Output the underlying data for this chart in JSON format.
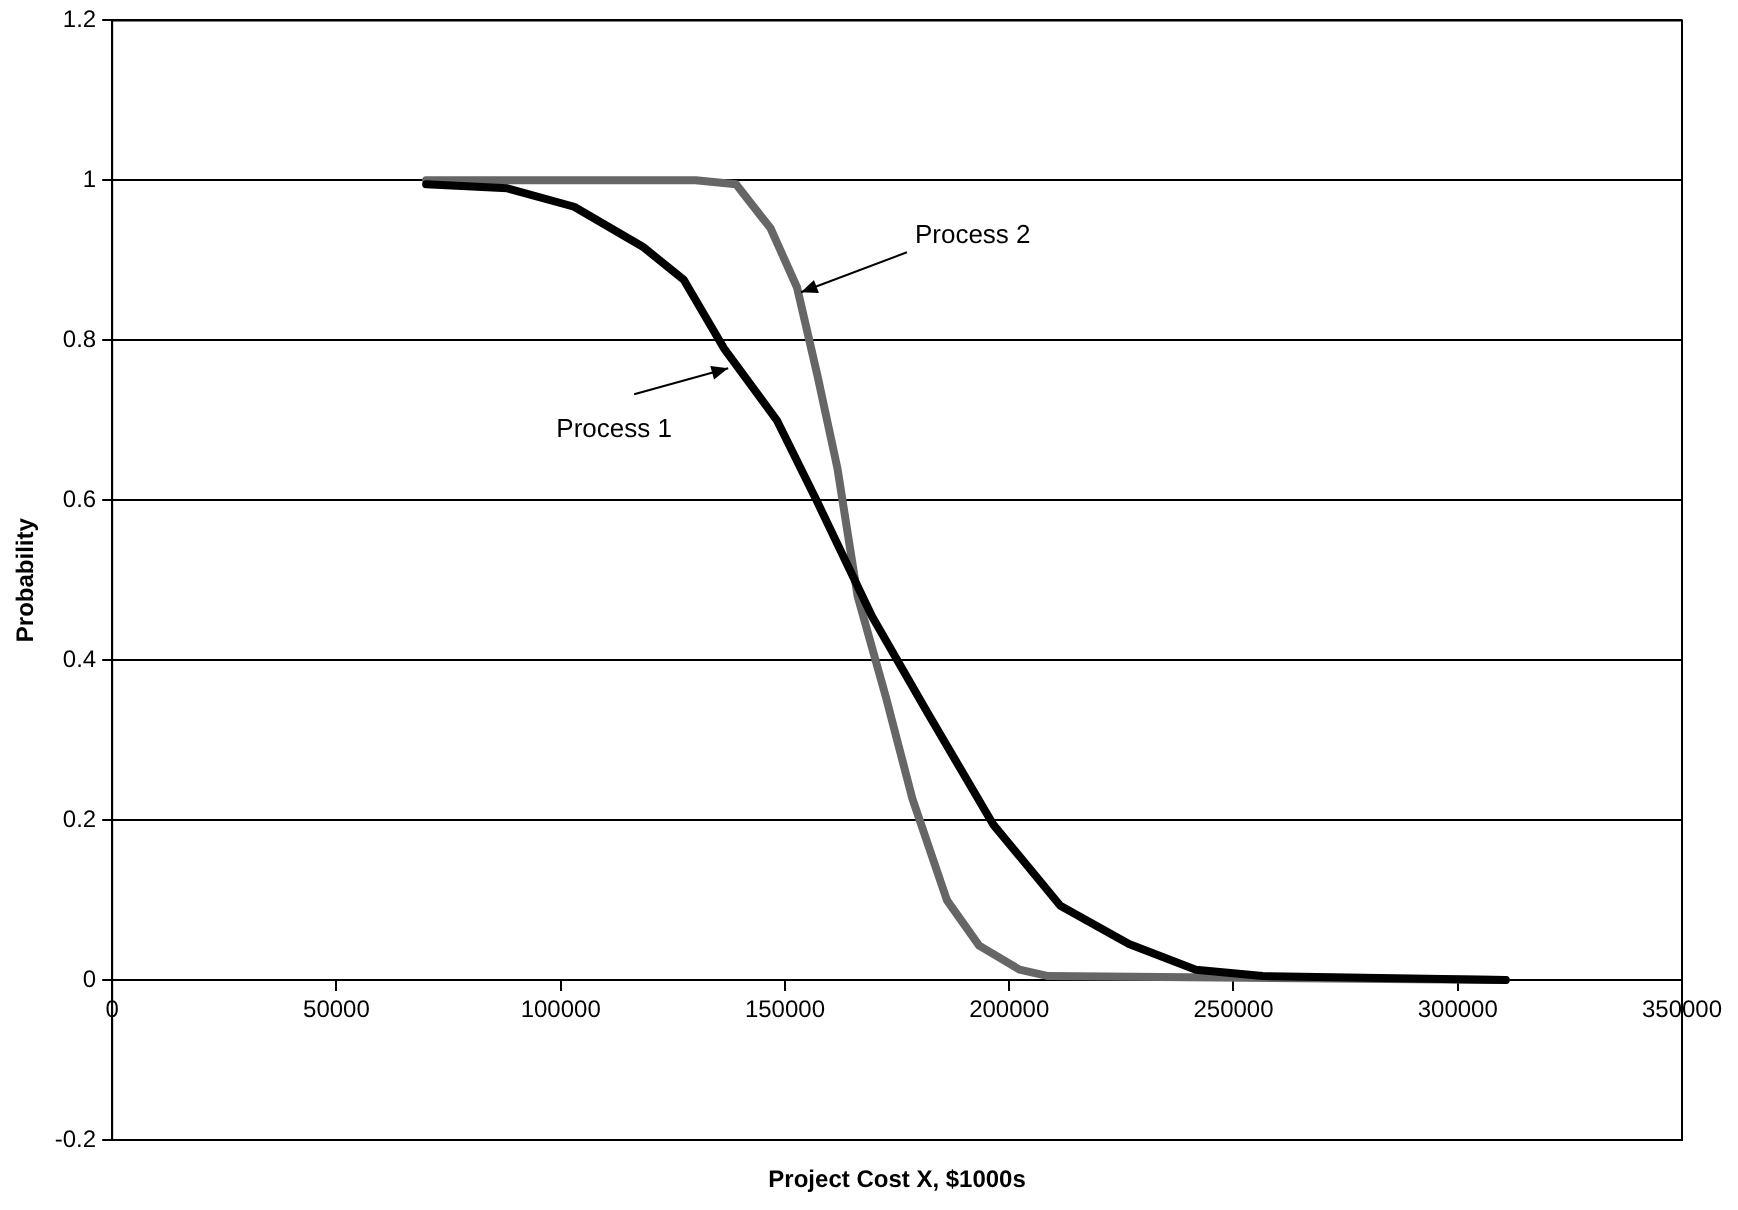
{
  "chart_data": {
    "type": "line",
    "xlabel": "Project Cost X, $1000s",
    "ylabel": "Probability",
    "xlim": [
      0,
      350000
    ],
    "xticks": [
      0,
      50000,
      100000,
      150000,
      200000,
      250000,
      300000,
      350000
    ],
    "ylim": [
      -0.2,
      1.2
    ],
    "yticks": [
      -0.2,
      0,
      0.2,
      0.4,
      0.6,
      0.8,
      1,
      1.2
    ],
    "grid": "y",
    "legend": false,
    "marker": "none",
    "line_style": "solid",
    "series": [
      {
        "color": "#000000",
        "x": [
          70000,
          88100,
          103000,
          118300,
          127400,
          136400,
          148200,
          157200,
          169400,
          181600,
          196500,
          211400,
          226700,
          241600,
          256500,
          310700
        ],
        "values": [
          0.995,
          0.99,
          0.967,
          0.917,
          0.876,
          0.79,
          0.7,
          0.598,
          0.455,
          0.336,
          0.194,
          0.093,
          0.045,
          0.013,
          0.005,
          0
        ]
      },
      {
        "color": "#666666",
        "x": [
          70000,
          130100,
          139100,
          146800,
          152700,
          157200,
          161700,
          166200,
          172500,
          178400,
          186100,
          193300,
          202300,
          208700,
          310700
        ],
        "values": [
          1,
          1,
          0.995,
          0.94,
          0.866,
          0.757,
          0.64,
          0.48,
          0.354,
          0.227,
          0.1,
          0.043,
          0.013,
          0.005,
          0
        ]
      }
    ],
    "annotations": [
      {
        "text": "Process 1",
        "x": 136000,
        "y": 0.77
      },
      {
        "text": "Process 2",
        "x": 154900,
        "y": 0.86
      }
    ]
  }
}
